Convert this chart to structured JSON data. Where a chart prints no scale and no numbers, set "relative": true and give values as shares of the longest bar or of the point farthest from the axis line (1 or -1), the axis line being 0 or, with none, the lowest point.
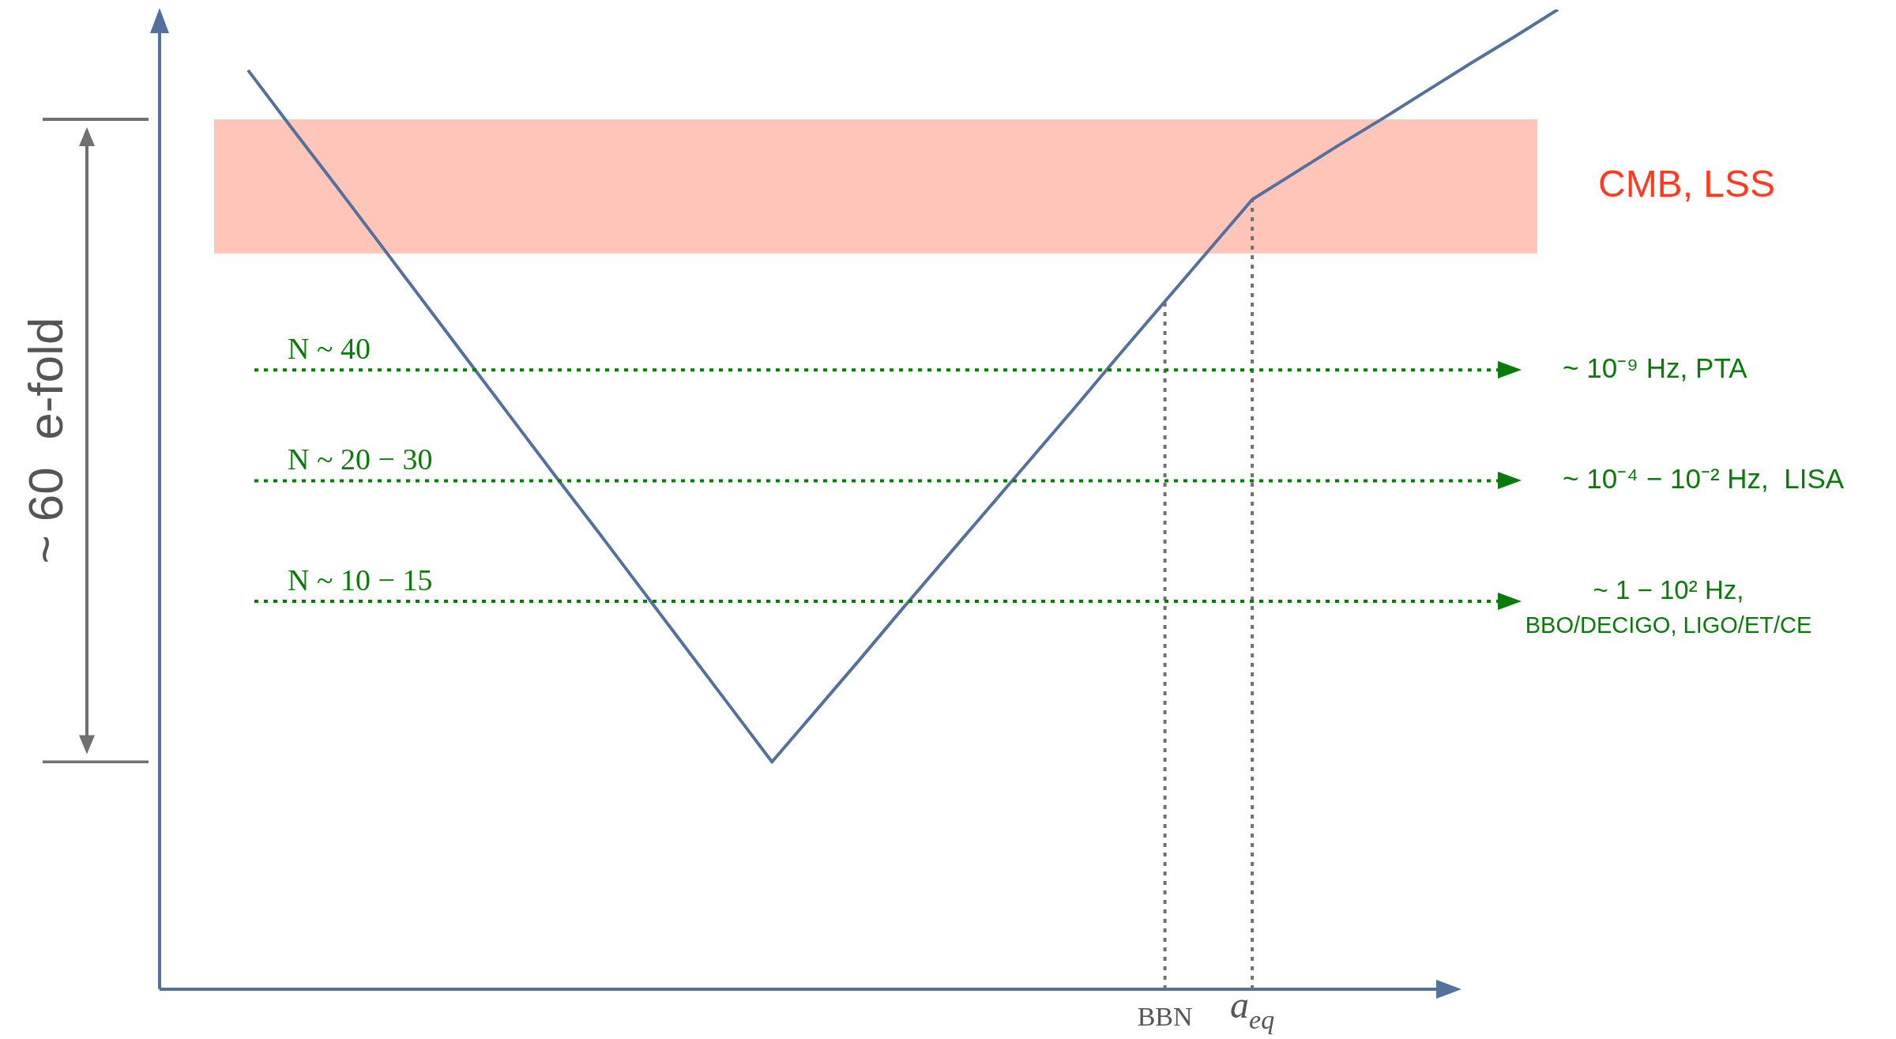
{
  "chart_data": {
    "type": "line",
    "relative": true,
    "tick_labels": "x",
    "marker": "none",
    "line_style": "solid",
    "categories": [
      null,
      null,
      null,
      null,
      null,
      null,
      null,
      null,
      null,
      null,
      null,
      null,
      null,
      null,
      null,
      null,
      null,
      null,
      null,
      null,
      null,
      "BBN",
      null,
      "a$_{eq}$",
      null,
      null,
      null,
      null,
      null,
      null,
      null
    ],
    "series": [
      {
        "color": "#54709c",
        "values": [
          0.938,
          0.879,
          0.821,
          0.762,
          0.703,
          0.644,
          0.585,
          0.526,
          0.468,
          0.409,
          0.35,
          0.291,
          0.232,
          0.284,
          0.336,
          0.389,
          0.441,
          0.493,
          0.545,
          0.597,
          0.65,
          0.702,
          0.754,
          0.806,
          0.834,
          0.862,
          0.889,
          0.917,
          0.945,
          0.972,
          1.0
        ]
      }
    ],
    "bands": [
      {
        "axis": "y",
        "from": 0.751,
        "to": 0.888,
        "label": "CMB, LSS",
        "color": "#ffc5b8"
      }
    ],
    "ref_lines": [
      {
        "axis": "x",
        "value": "BBN",
        "color": "#707070",
        "line_style": "dotted"
      },
      {
        "axis": "x",
        "value": "a$_{eq}$",
        "color": "#707070",
        "line_style": "dotted"
      },
      {
        "axis": "y",
        "value": 0.632,
        "label": "~ 10⁻⁹ Hz, PTA",
        "color": "#0a7a0a",
        "line_style": "dotted"
      },
      {
        "axis": "y",
        "value": 0.519,
        "label": "~ 10⁻⁴ − 10⁻² Hz,  LISA",
        "color": "#0a7a0a",
        "line_style": "dotted"
      },
      {
        "axis": "y",
        "value": 0.396,
        "label": "~ 1 − 10² Hz,\nBBO/DECIGO, LIGO/ET/CE",
        "color": "#0a7a0a",
        "line_style": "dotted"
      }
    ],
    "annotations": [
      "~ 60  e-fold",
      {
        "text": "N ~ 40",
        "y": 0.632
      },
      {
        "text": "N ~ 20 − 30",
        "y": 0.519
      },
      {
        "text": "N ~ 10 − 15",
        "y": 0.396
      }
    ]
  }
}
